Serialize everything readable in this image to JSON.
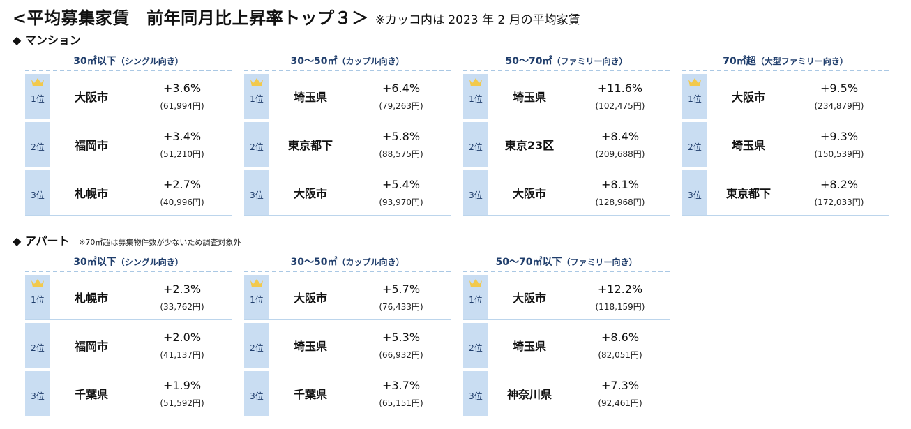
{
  "title": {
    "main": "<平均募集家賃　前年同月比上昇率トップ３＞",
    "note": "※カッコ内は 2023 年 2 月の平均家賃"
  },
  "mansion": {
    "heading": "◆ マンション",
    "groups": [
      {
        "label": "30㎡以下",
        "sub": "（シングル向き）",
        "rows": [
          {
            "rank": "1位",
            "pref": "大阪市",
            "rate": "+3.6%",
            "rent": "(61,994円)"
          },
          {
            "rank": "2位",
            "pref": "福岡市",
            "rate": "+3.4%",
            "rent": "(51,210円)"
          },
          {
            "rank": "3位",
            "pref": "札幌市",
            "rate": "+2.7%",
            "rent": "(40,996円)"
          }
        ]
      },
      {
        "label": "30～50㎡",
        "sub": "（カップル向き）",
        "rows": [
          {
            "rank": "1位",
            "pref": "埼玉県",
            "rate": "+6.4%",
            "rent": "(79,263円)"
          },
          {
            "rank": "2位",
            "pref": "東京都下",
            "rate": "+5.8%",
            "rent": "(88,575円)"
          },
          {
            "rank": "3位",
            "pref": "大阪市",
            "rate": "+5.4%",
            "rent": "(93,970円)"
          }
        ]
      },
      {
        "label": "50～70㎡",
        "sub": "（ファミリー向き）",
        "rows": [
          {
            "rank": "1位",
            "pref": "埼玉県",
            "rate": "+11.6%",
            "rent": "(102,475円)"
          },
          {
            "rank": "2位",
            "pref": "東京23区",
            "rate": "+8.4%",
            "rent": "(209,688円)"
          },
          {
            "rank": "3位",
            "pref": "大阪市",
            "rate": "+8.1%",
            "rent": "(128,968円)"
          }
        ]
      },
      {
        "label": "70㎡超",
        "sub": "（大型ファミリー向き）",
        "rows": [
          {
            "rank": "1位",
            "pref": "大阪市",
            "rate": "+9.5%",
            "rent": "(234,879円)"
          },
          {
            "rank": "2位",
            "pref": "埼玉県",
            "rate": "+9.3%",
            "rent": "(150,539円)"
          },
          {
            "rank": "3位",
            "pref": "東京都下",
            "rate": "+8.2%",
            "rent": "(172,033円)"
          }
        ]
      }
    ]
  },
  "apart": {
    "heading": "◆ アパート",
    "note": "※70㎡超は募集物件数が少ないため調査対象外",
    "groups": [
      {
        "label": "30㎡以下",
        "sub": "（シングル向き）",
        "rows": [
          {
            "rank": "1位",
            "pref": "札幌市",
            "rate": "+2.3%",
            "rent": "(33,762円)"
          },
          {
            "rank": "2位",
            "pref": "福岡市",
            "rate": "+2.0%",
            "rent": "(41,137円)"
          },
          {
            "rank": "3位",
            "pref": "千葉県",
            "rate": "+1.9%",
            "rent": "(51,592円)"
          }
        ]
      },
      {
        "label": "30～50㎡",
        "sub": "（カップル向き）",
        "rows": [
          {
            "rank": "1位",
            "pref": "大阪市",
            "rate": "+5.7%",
            "rent": "(76,433円)"
          },
          {
            "rank": "2位",
            "pref": "埼玉県",
            "rate": "+5.3%",
            "rent": "(66,932円)"
          },
          {
            "rank": "3位",
            "pref": "千葉県",
            "rate": "+3.7%",
            "rent": "(65,151円)"
          }
        ]
      },
      {
        "label": "50～70㎡以下",
        "sub": "（ファミリー向き）",
        "rows": [
          {
            "rank": "1位",
            "pref": "大阪市",
            "rate": "+12.2%",
            "rent": "(118,159円)"
          },
          {
            "rank": "2位",
            "pref": "埼玉県",
            "rate": "+8.6%",
            "rent": "(82,051円)"
          },
          {
            "rank": "3位",
            "pref": "神奈川県",
            "rate": "+7.3%",
            "rent": "(92,461円)"
          }
        ]
      }
    ]
  },
  "icons": {
    "first_place": "crown-icon"
  },
  "colors": {
    "rank_bg": "#c9ddf2",
    "header_text": "#1f3d6b",
    "crown": "#f2c94c",
    "dash": "#aac8e4"
  }
}
